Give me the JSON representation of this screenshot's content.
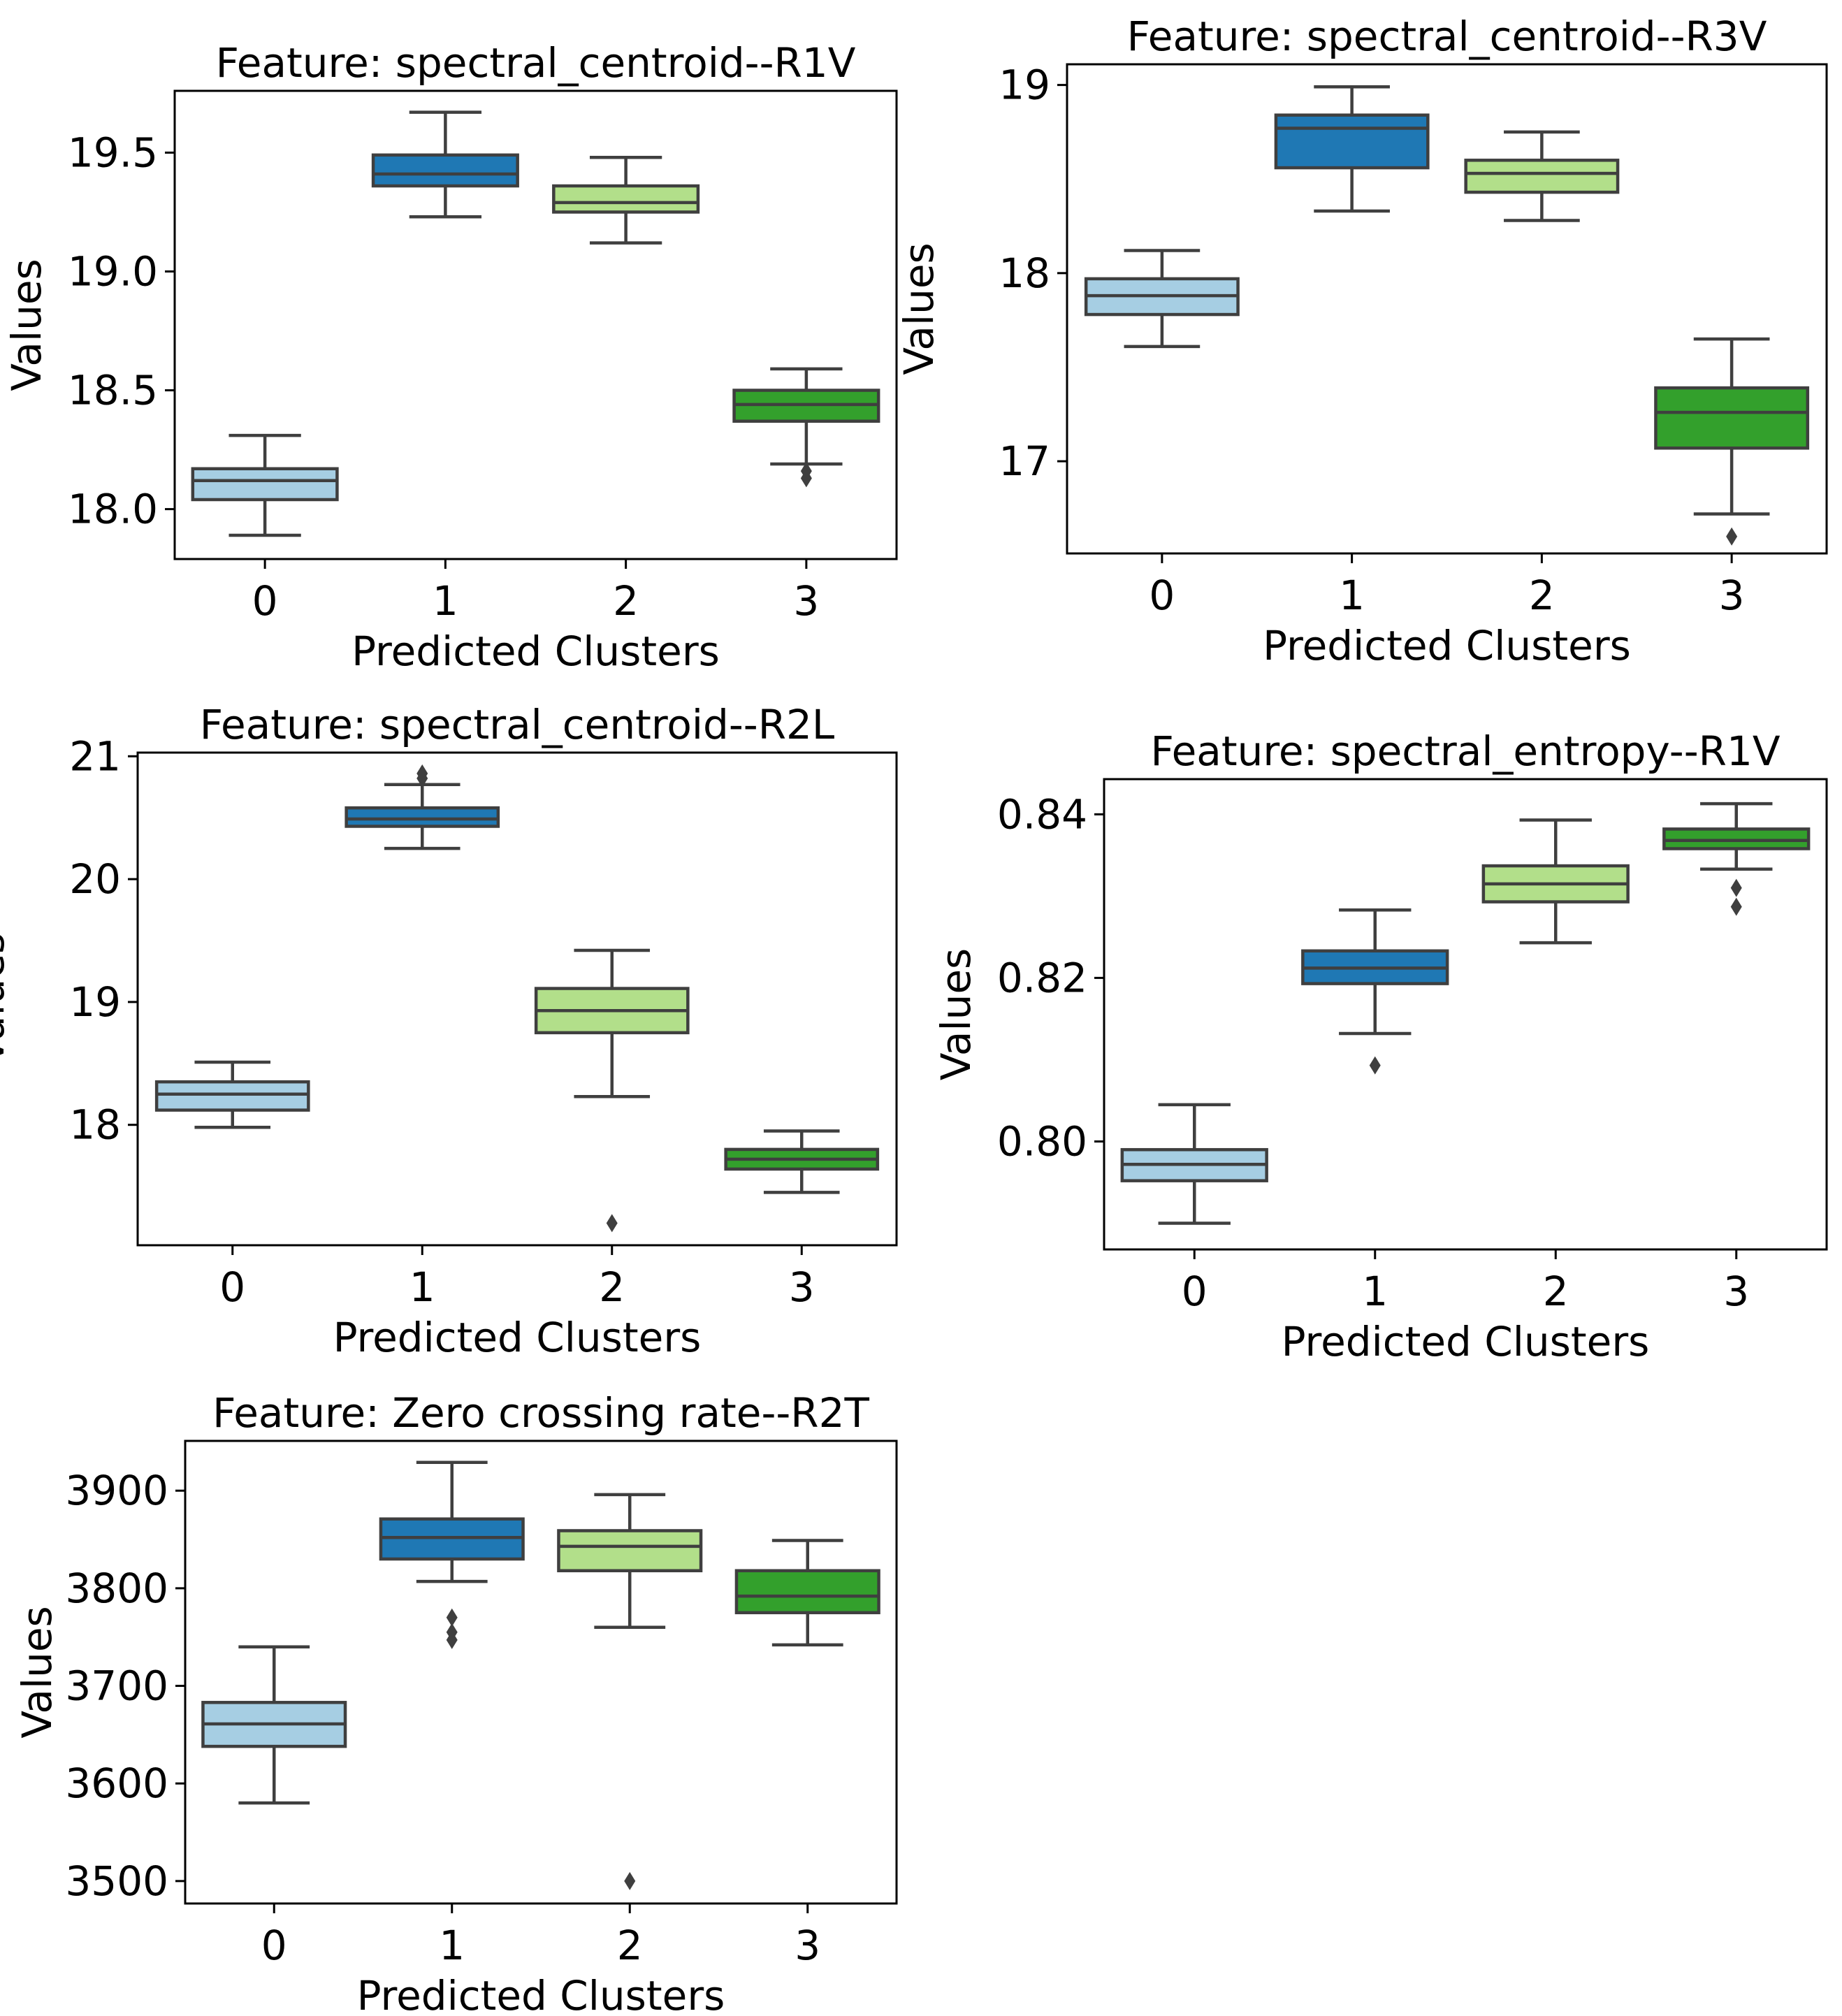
{
  "colors": {
    "cluster_fills": [
      "#a6cee3",
      "#1f78b4",
      "#b2df8a",
      "#33a02c"
    ],
    "box_line": "#3f3f3f",
    "axes": "#000000",
    "background": "#ffffff"
  },
  "chart_data": [
    {
      "type": "box",
      "title": "Feature: spectral_centroid--R1V",
      "xlabel": "Predicted Clusters",
      "ylabel": "Values",
      "categories": [
        "0",
        "1",
        "2",
        "3"
      ],
      "ylim": [
        17.79,
        19.76
      ],
      "yticks": [
        18.0,
        18.5,
        19.0,
        19.5
      ],
      "ytick_labels": [
        "18.0",
        "18.5",
        "19.0",
        "19.5"
      ],
      "boxes": [
        {
          "cluster": "0",
          "whisker_low": 17.89,
          "q1": 18.04,
          "median": 18.12,
          "q3": 18.17,
          "whisker_high": 18.31,
          "outliers": []
        },
        {
          "cluster": "1",
          "whisker_low": 19.23,
          "q1": 19.36,
          "median": 19.41,
          "q3": 19.49,
          "whisker_high": 19.67,
          "outliers": []
        },
        {
          "cluster": "2",
          "whisker_low": 19.12,
          "q1": 19.25,
          "median": 19.29,
          "q3": 19.36,
          "whisker_high": 19.48,
          "outliers": []
        },
        {
          "cluster": "3",
          "whisker_low": 18.19,
          "q1": 18.37,
          "median": 18.44,
          "q3": 18.5,
          "whisker_high": 18.59,
          "outliers": [
            18.13,
            18.16
          ]
        }
      ]
    },
    {
      "type": "box",
      "title": "Feature: spectral_centroid--R3V",
      "xlabel": "Predicted Clusters",
      "ylabel": "Values",
      "categories": [
        "0",
        "1",
        "2",
        "3"
      ],
      "ylim": [
        16.51,
        19.11
      ],
      "yticks": [
        17,
        18,
        19
      ],
      "ytick_labels": [
        "17",
        "18",
        "19"
      ],
      "boxes": [
        {
          "cluster": "0",
          "whisker_low": 17.61,
          "q1": 17.78,
          "median": 17.88,
          "q3": 17.97,
          "whisker_high": 18.12,
          "outliers": []
        },
        {
          "cluster": "1",
          "whisker_low": 18.33,
          "q1": 18.56,
          "median": 18.77,
          "q3": 18.84,
          "whisker_high": 18.99,
          "outliers": []
        },
        {
          "cluster": "2",
          "whisker_low": 18.28,
          "q1": 18.43,
          "median": 18.53,
          "q3": 18.6,
          "whisker_high": 18.75,
          "outliers": []
        },
        {
          "cluster": "3",
          "whisker_low": 16.72,
          "q1": 17.07,
          "median": 17.26,
          "q3": 17.39,
          "whisker_high": 17.65,
          "outliers": [
            16.6
          ]
        }
      ]
    },
    {
      "type": "box",
      "title": "Feature: spectral_centroid--R2L",
      "xlabel": "Predicted Clusters",
      "ylabel": "Values",
      "categories": [
        "0",
        "1",
        "2",
        "3"
      ],
      "ylim": [
        17.02,
        21.03
      ],
      "yticks": [
        18,
        19,
        20,
        21
      ],
      "ytick_labels": [
        "18",
        "19",
        "20",
        "21"
      ],
      "boxes": [
        {
          "cluster": "0",
          "whisker_low": 17.98,
          "q1": 18.12,
          "median": 18.25,
          "q3": 18.35,
          "whisker_high": 18.51,
          "outliers": []
        },
        {
          "cluster": "1",
          "whisker_low": 20.25,
          "q1": 20.43,
          "median": 20.49,
          "q3": 20.58,
          "whisker_high": 20.77,
          "outliers": [
            20.82,
            20.86
          ]
        },
        {
          "cluster": "2",
          "whisker_low": 18.23,
          "q1": 18.75,
          "median": 18.93,
          "q3": 19.11,
          "whisker_high": 19.42,
          "outliers": [
            17.2
          ]
        },
        {
          "cluster": "3",
          "whisker_low": 17.45,
          "q1": 17.64,
          "median": 17.72,
          "q3": 17.8,
          "whisker_high": 17.95,
          "outliers": []
        }
      ]
    },
    {
      "type": "box",
      "title": "Feature: spectral_entropy--R1V",
      "xlabel": "Predicted Clusters",
      "ylabel": "Values",
      "categories": [
        "0",
        "1",
        "2",
        "3"
      ],
      "ylim": [
        0.7868,
        0.8443
      ],
      "yticks": [
        0.8,
        0.82,
        0.84
      ],
      "ytick_labels": [
        "0.80",
        "0.82",
        "0.84"
      ],
      "boxes": [
        {
          "cluster": "0",
          "whisker_low": 0.79,
          "q1": 0.7952,
          "median": 0.7972,
          "q3": 0.799,
          "whisker_high": 0.8045,
          "outliers": []
        },
        {
          "cluster": "1",
          "whisker_low": 0.8132,
          "q1": 0.8193,
          "median": 0.8212,
          "q3": 0.8233,
          "whisker_high": 0.8283,
          "outliers": [
            0.8093
          ]
        },
        {
          "cluster": "2",
          "whisker_low": 0.8243,
          "q1": 0.8293,
          "median": 0.8315,
          "q3": 0.8337,
          "whisker_high": 0.8393,
          "outliers": []
        },
        {
          "cluster": "3",
          "whisker_low": 0.8333,
          "q1": 0.8358,
          "median": 0.8368,
          "q3": 0.8382,
          "whisker_high": 0.8413,
          "outliers": [
            0.8287,
            0.831
          ]
        }
      ]
    },
    {
      "type": "box",
      "title": "Feature: Zero crossing rate--R2T",
      "xlabel": "Predicted Clusters",
      "ylabel": "Values",
      "categories": [
        "0",
        "1",
        "2",
        "3"
      ],
      "ylim": [
        3477,
        3951
      ],
      "yticks": [
        3500,
        3600,
        3700,
        3800,
        3900
      ],
      "ytick_labels": [
        "3500",
        "3600",
        "3700",
        "3800",
        "3900"
      ],
      "boxes": [
        {
          "cluster": "0",
          "whisker_low": 3580,
          "q1": 3638,
          "median": 3661,
          "q3": 3683,
          "whisker_high": 3740,
          "outliers": []
        },
        {
          "cluster": "1",
          "whisker_low": 3807,
          "q1": 3830,
          "median": 3852,
          "q3": 3871,
          "whisker_high": 3929,
          "outliers": [
            3747,
            3755,
            3770
          ]
        },
        {
          "cluster": "2",
          "whisker_low": 3760,
          "q1": 3818,
          "median": 3843,
          "q3": 3859,
          "whisker_high": 3896,
          "outliers": [
            3500
          ]
        },
        {
          "cluster": "3",
          "whisker_low": 3742,
          "q1": 3775,
          "median": 3792,
          "q3": 3818,
          "whisker_high": 3849,
          "outliers": []
        }
      ]
    }
  ]
}
